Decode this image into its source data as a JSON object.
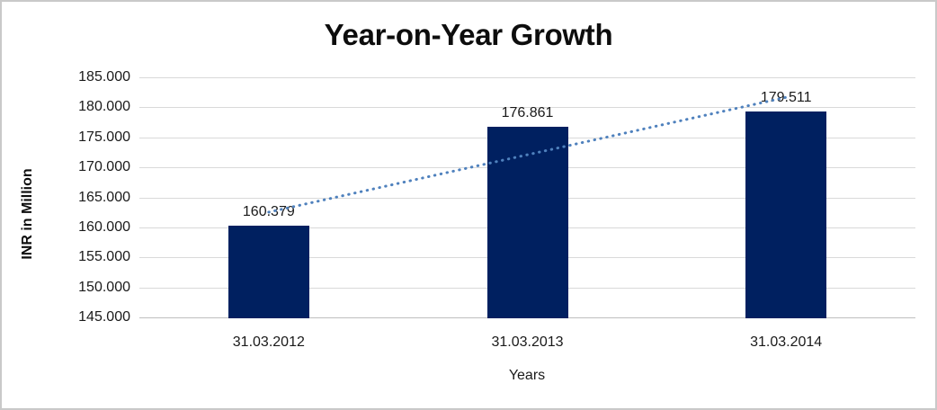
{
  "chart_data": {
    "type": "bar",
    "title": "Year-on-Year Growth",
    "xlabel": "Years",
    "ylabel": "INR in Million",
    "categories": [
      "31.03.2012",
      "31.03.2013",
      "31.03.2014"
    ],
    "values": [
      160.379,
      176.861,
      179.511
    ],
    "data_labels": [
      "160.379",
      "176.861",
      "179.511"
    ],
    "ylim": [
      145,
      185
    ],
    "ytick_step": 5,
    "ytick_labels": [
      "145.000",
      "150.000",
      "155.000",
      "160.000",
      "165.000",
      "170.000",
      "175.000",
      "180.000",
      "185.000"
    ],
    "grid": true,
    "legend": "none",
    "bar_color": "#002060",
    "trendline": {
      "type": "linear",
      "style": "dotted",
      "color": "#4F81BD"
    },
    "gridline_color": "#D9D9D9",
    "axis_line_color": "#BFBFBF",
    "text_color": "#1A1A1A",
    "frame_border_color": "#C9C9C9",
    "background": "#FFFFFF"
  }
}
